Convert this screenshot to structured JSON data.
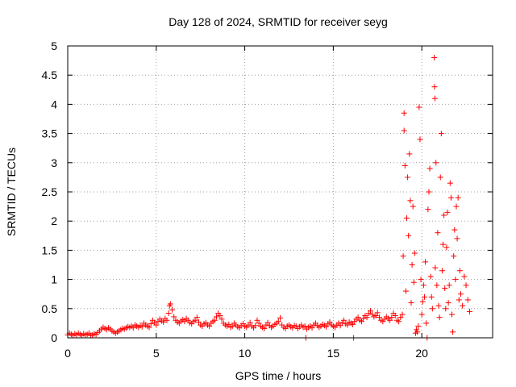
{
  "chart_data": {
    "type": "scatter",
    "title": "Day 128 of 2024, SRMTID for receiver seyg",
    "xlabel": "GPS time / hours",
    "ylabel": "SRMTID / TECUs",
    "xlim": [
      0,
      24
    ],
    "ylim": [
      0,
      5
    ],
    "xticks": [
      0,
      5,
      10,
      15,
      20
    ],
    "xtick_labels": [
      "0",
      "5",
      "10",
      "15",
      "20"
    ],
    "yticks": [
      0,
      0.5,
      1,
      1.5,
      2,
      2.5,
      3,
      3.5,
      4,
      4.5,
      5
    ],
    "ytick_labels": [
      "0",
      "0.5",
      "1",
      "1.5",
      "2",
      "2.5",
      "3",
      "3.5",
      "4",
      "4.5",
      "5"
    ],
    "grid": true,
    "marker": "+",
    "color": "#ff0000",
    "series": [
      {
        "name": "SRMTID",
        "points": [
          [
            0.0,
            0.05
          ],
          [
            0.1,
            0.08
          ],
          [
            0.2,
            0.06
          ],
          [
            0.3,
            0.04
          ],
          [
            0.4,
            0.07
          ],
          [
            0.5,
            0.05
          ],
          [
            0.6,
            0.08
          ],
          [
            0.7,
            0.06
          ],
          [
            0.8,
            0.04
          ],
          [
            0.9,
            0.07
          ],
          [
            1.0,
            0.05
          ],
          [
            1.1,
            0.06
          ],
          [
            1.2,
            0.08
          ],
          [
            1.3,
            0.04
          ],
          [
            1.4,
            0.05
          ],
          [
            1.5,
            0.07
          ],
          [
            1.6,
            0.06
          ],
          [
            1.7,
            0.09
          ],
          [
            1.8,
            0.12
          ],
          [
            1.9,
            0.15
          ],
          [
            2.0,
            0.18
          ],
          [
            2.1,
            0.16
          ],
          [
            2.2,
            0.14
          ],
          [
            2.3,
            0.17
          ],
          [
            2.4,
            0.15
          ],
          [
            2.5,
            0.12
          ],
          [
            2.6,
            0.1
          ],
          [
            2.7,
            0.08
          ],
          [
            2.8,
            0.1
          ],
          [
            2.9,
            0.12
          ],
          [
            3.0,
            0.14
          ],
          [
            3.1,
            0.16
          ],
          [
            3.2,
            0.15
          ],
          [
            3.3,
            0.17
          ],
          [
            3.4,
            0.19
          ],
          [
            3.5,
            0.18
          ],
          [
            3.6,
            0.2
          ],
          [
            3.7,
            0.17
          ],
          [
            3.8,
            0.22
          ],
          [
            3.9,
            0.2
          ],
          [
            4.0,
            0.18
          ],
          [
            4.1,
            0.21
          ],
          [
            4.2,
            0.19
          ],
          [
            4.3,
            0.25
          ],
          [
            4.4,
            0.22
          ],
          [
            4.5,
            0.2
          ],
          [
            4.6,
            0.18
          ],
          [
            4.7,
            0.24
          ],
          [
            4.8,
            0.3
          ],
          [
            4.9,
            0.26
          ],
          [
            5.0,
            0.22
          ],
          [
            5.1,
            0.28
          ],
          [
            5.2,
            0.32
          ],
          [
            5.3,
            0.29
          ],
          [
            5.4,
            0.27
          ],
          [
            5.5,
            0.33
          ],
          [
            5.6,
            0.3
          ],
          [
            5.7,
            0.42
          ],
          [
            5.75,
            0.55
          ],
          [
            5.8,
            0.58
          ],
          [
            5.9,
            0.48
          ],
          [
            6.0,
            0.36
          ],
          [
            6.1,
            0.3
          ],
          [
            6.2,
            0.27
          ],
          [
            6.3,
            0.25
          ],
          [
            6.4,
            0.29
          ],
          [
            6.5,
            0.31
          ],
          [
            6.6,
            0.28
          ],
          [
            6.7,
            0.33
          ],
          [
            6.8,
            0.3
          ],
          [
            6.9,
            0.26
          ],
          [
            7.0,
            0.24
          ],
          [
            7.1,
            0.28
          ],
          [
            7.2,
            0.3
          ],
          [
            7.3,
            0.35
          ],
          [
            7.4,
            0.27
          ],
          [
            7.5,
            0.22
          ],
          [
            7.6,
            0.2
          ],
          [
            7.7,
            0.24
          ],
          [
            7.8,
            0.26
          ],
          [
            7.9,
            0.22
          ],
          [
            8.0,
            0.2
          ],
          [
            8.1,
            0.25
          ],
          [
            8.2,
            0.28
          ],
          [
            8.3,
            0.3
          ],
          [
            8.4,
            0.36
          ],
          [
            8.5,
            0.42
          ],
          [
            8.6,
            0.38
          ],
          [
            8.7,
            0.32
          ],
          [
            8.8,
            0.25
          ],
          [
            8.9,
            0.22
          ],
          [
            9.0,
            0.2
          ],
          [
            9.1,
            0.23
          ],
          [
            9.2,
            0.18
          ],
          [
            9.3,
            0.2
          ],
          [
            9.4,
            0.25
          ],
          [
            9.5,
            0.22
          ],
          [
            9.6,
            0.19
          ],
          [
            9.7,
            0.17
          ],
          [
            9.8,
            0.21
          ],
          [
            9.9,
            0.24
          ],
          [
            10.0,
            0.2
          ],
          [
            10.1,
            0.18
          ],
          [
            10.2,
            0.22
          ],
          [
            10.3,
            0.26
          ],
          [
            10.4,
            0.2
          ],
          [
            10.5,
            0.17
          ],
          [
            10.6,
            0.21
          ],
          [
            10.7,
            0.3
          ],
          [
            10.8,
            0.25
          ],
          [
            10.9,
            0.2
          ],
          [
            11.0,
            0.18
          ],
          [
            11.1,
            0.16
          ],
          [
            11.2,
            0.22
          ],
          [
            11.3,
            0.26
          ],
          [
            11.4,
            0.21
          ],
          [
            11.5,
            0.18
          ],
          [
            11.6,
            0.2
          ],
          [
            11.7,
            0.23
          ],
          [
            11.8,
            0.25
          ],
          [
            11.9,
            0.28
          ],
          [
            12.0,
            0.34
          ],
          [
            12.1,
            0.22
          ],
          [
            12.2,
            0.18
          ],
          [
            12.3,
            0.16
          ],
          [
            12.4,
            0.2
          ],
          [
            12.5,
            0.22
          ],
          [
            12.6,
            0.19
          ],
          [
            12.7,
            0.17
          ],
          [
            12.8,
            0.21
          ],
          [
            12.9,
            0.2
          ],
          [
            13.0,
            0.16
          ],
          [
            13.1,
            0.19
          ],
          [
            13.2,
            0.22
          ],
          [
            13.3,
            0.18
          ],
          [
            13.4,
            0.2
          ],
          [
            13.45,
            0.0
          ],
          [
            13.5,
            0.15
          ],
          [
            13.6,
            0.18
          ],
          [
            13.7,
            0.2
          ],
          [
            13.8,
            0.17
          ],
          [
            13.9,
            0.22
          ],
          [
            14.0,
            0.25
          ],
          [
            14.1,
            0.21
          ],
          [
            14.2,
            0.18
          ],
          [
            14.3,
            0.2
          ],
          [
            14.4,
            0.23
          ],
          [
            14.5,
            0.21
          ],
          [
            14.6,
            0.19
          ],
          [
            14.7,
            0.24
          ],
          [
            14.8,
            0.27
          ],
          [
            14.9,
            0.22
          ],
          [
            15.0,
            0.2
          ],
          [
            15.1,
            0.18
          ],
          [
            15.2,
            0.22
          ],
          [
            15.3,
            0.25
          ],
          [
            15.4,
            0.21
          ],
          [
            15.5,
            0.26
          ],
          [
            15.6,
            0.3
          ],
          [
            15.7,
            0.24
          ],
          [
            15.8,
            0.22
          ],
          [
            15.9,
            0.27
          ],
          [
            16.0,
            0.25
          ],
          [
            16.1,
            0.23
          ],
          [
            16.15,
            0.0
          ],
          [
            16.2,
            0.28
          ],
          [
            16.3,
            0.32
          ],
          [
            16.4,
            0.35
          ],
          [
            16.5,
            0.3
          ],
          [
            16.6,
            0.28
          ],
          [
            16.7,
            0.33
          ],
          [
            16.8,
            0.38
          ],
          [
            16.9,
            0.35
          ],
          [
            17.0,
            0.42
          ],
          [
            17.1,
            0.46
          ],
          [
            17.2,
            0.4
          ],
          [
            17.3,
            0.36
          ],
          [
            17.4,
            0.38
          ],
          [
            17.5,
            0.43
          ],
          [
            17.6,
            0.35
          ],
          [
            17.7,
            0.3
          ],
          [
            17.8,
            0.28
          ],
          [
            17.9,
            0.32
          ],
          [
            18.0,
            0.36
          ],
          [
            18.1,
            0.33
          ],
          [
            18.2,
            0.3
          ],
          [
            18.3,
            0.35
          ],
          [
            18.4,
            0.42
          ],
          [
            18.5,
            0.38
          ],
          [
            18.6,
            0.3
          ],
          [
            18.7,
            0.28
          ],
          [
            18.8,
            0.35
          ],
          [
            18.9,
            0.4
          ],
          [
            18.95,
            1.4
          ],
          [
            19.0,
            3.85
          ],
          [
            19.0,
            3.55
          ],
          [
            19.05,
            2.95
          ],
          [
            19.1,
            0.8
          ],
          [
            19.15,
            2.05
          ],
          [
            19.2,
            2.75
          ],
          [
            19.25,
            1.75
          ],
          [
            19.3,
            3.15
          ],
          [
            19.35,
            2.35
          ],
          [
            19.4,
            0.6
          ],
          [
            19.45,
            1.25
          ],
          [
            19.5,
            2.25
          ],
          [
            19.55,
            0.95
          ],
          [
            19.6,
            1.45
          ],
          [
            19.65,
            0.08
          ],
          [
            19.7,
            0.14
          ],
          [
            19.75,
            0.1
          ],
          [
            19.8,
            0.2
          ],
          [
            19.85,
            3.95
          ],
          [
            19.9,
            3.4
          ],
          [
            19.95,
            1.0
          ],
          [
            20.0,
            0.4
          ],
          [
            20.05,
            0.62
          ],
          [
            20.1,
            0.9
          ],
          [
            20.15,
            0.7
          ],
          [
            20.2,
            1.3
          ],
          [
            20.25,
            0.25
          ],
          [
            20.3,
            0.0
          ],
          [
            20.35,
            2.2
          ],
          [
            20.4,
            2.5
          ],
          [
            20.45,
            2.9
          ],
          [
            20.5,
            1.05
          ],
          [
            20.55,
            0.7
          ],
          [
            20.6,
            0.5
          ],
          [
            20.7,
            4.8
          ],
          [
            20.72,
            4.3
          ],
          [
            20.74,
            4.1
          ],
          [
            20.76,
            1.2
          ],
          [
            20.8,
            3.0
          ],
          [
            20.85,
            0.9
          ],
          [
            20.9,
            1.8
          ],
          [
            20.95,
            0.55
          ],
          [
            21.0,
            0.35
          ],
          [
            21.05,
            2.75
          ],
          [
            21.1,
            3.5
          ],
          [
            21.15,
            1.15
          ],
          [
            21.2,
            1.6
          ],
          [
            21.25,
            2.1
          ],
          [
            21.3,
            0.85
          ],
          [
            21.35,
            0.5
          ],
          [
            21.4,
            1.55
          ],
          [
            21.45,
            2.15
          ],
          [
            21.5,
            0.6
          ],
          [
            21.55,
            0.9
          ],
          [
            21.6,
            2.65
          ],
          [
            21.65,
            2.4
          ],
          [
            21.7,
            0.4
          ],
          [
            21.75,
            0.1
          ],
          [
            21.8,
            1.4
          ],
          [
            21.85,
            1.85
          ],
          [
            21.9,
            1.0
          ],
          [
            21.95,
            2.25
          ],
          [
            22.0,
            1.7
          ],
          [
            22.05,
            2.4
          ],
          [
            22.1,
            0.65
          ],
          [
            22.15,
            1.15
          ],
          [
            22.2,
            0.75
          ],
          [
            22.3,
            0.55
          ],
          [
            22.4,
            1.05
          ],
          [
            22.5,
            0.9
          ],
          [
            22.6,
            0.65
          ],
          [
            22.7,
            0.45
          ]
        ]
      }
    ]
  }
}
